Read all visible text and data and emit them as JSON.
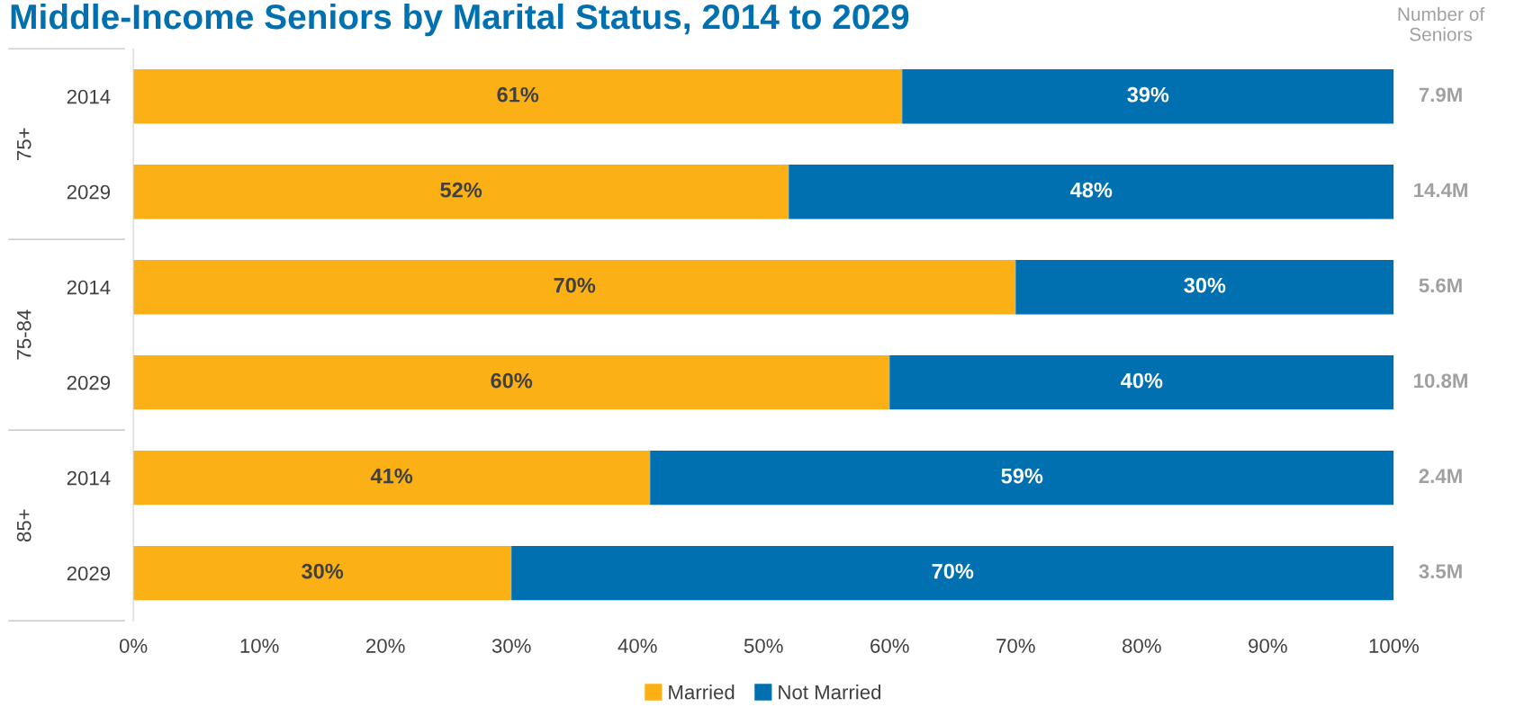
{
  "chart_data": {
    "type": "bar",
    "orientation": "horizontal",
    "stacked": true,
    "title": "Middle-Income Seniors by Marital Status, 2014 to 2029",
    "categories": [
      "2014",
      "2029",
      "2014",
      "2029",
      "2014",
      "2029"
    ],
    "series": [
      {
        "name": "Married",
        "color": "#fbb116",
        "values": [
          61,
          52,
          70,
          60,
          41,
          30
        ],
        "value_labels": [
          "61%",
          "52%",
          "70%",
          "60%",
          "41%",
          "30%"
        ]
      },
      {
        "name": "Not Married",
        "color": "#0070b0",
        "values": [
          39,
          48,
          30,
          40,
          59,
          70
        ],
        "value_labels": [
          "39%",
          "48%",
          "30%",
          "40%",
          "59%",
          "70%"
        ]
      }
    ],
    "xlim": [
      0,
      100
    ],
    "xticks": [
      {
        "value": 0,
        "label": "0%"
      },
      {
        "value": 10,
        "label": "10%"
      },
      {
        "value": 20,
        "label": "20%"
      },
      {
        "value": 30,
        "label": "30%"
      },
      {
        "value": 40,
        "label": "40%"
      },
      {
        "value": 50,
        "label": "50%"
      },
      {
        "value": 60,
        "label": "60%"
      },
      {
        "value": 70,
        "label": "70%"
      },
      {
        "value": 80,
        "label": "80%"
      },
      {
        "value": 90,
        "label": "90%"
      },
      {
        "value": 100,
        "label": "100%"
      }
    ],
    "annotations": [
      "75+",
      "75-84",
      "85+",
      "Number of\nSeniors",
      "7.9M",
      "14.4M",
      "5.6M",
      "10.8M",
      "2.4M",
      "3.5M"
    ],
    "legend": "bottom",
    "grid": false
  }
}
